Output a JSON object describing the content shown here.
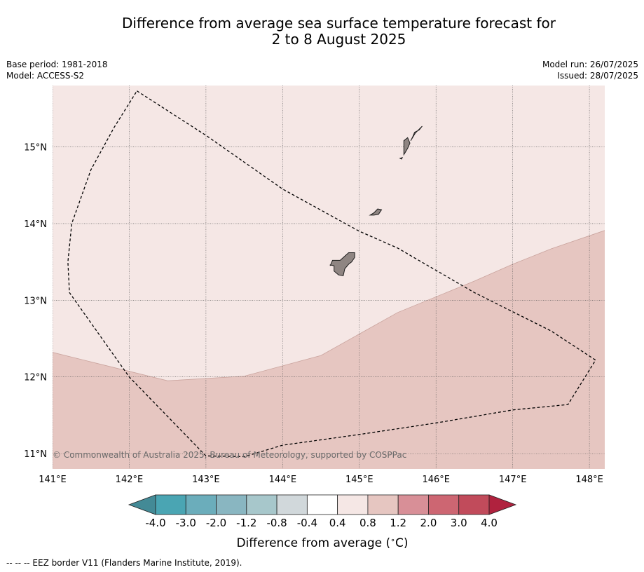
{
  "title": {
    "line1": "Difference from average sea surface temperature forecast for",
    "line2": "2 to 8 August 2025"
  },
  "meta_left": {
    "base_period": "Base period: 1981-2018",
    "model": "Model: ACCESS-S2"
  },
  "meta_right": {
    "model_run": "Model run: 26/07/2025",
    "issued": "Issued: 28/07/2025"
  },
  "map": {
    "lon_range": [
      141.0,
      148.2
    ],
    "lat_range": [
      10.8,
      15.8
    ],
    "lon_ticks": [
      141,
      142,
      143,
      144,
      145,
      146,
      147,
      148
    ],
    "lat_ticks": [
      11,
      12,
      13,
      14,
      15
    ],
    "lon_labels": [
      "141°E",
      "142°E",
      "143°E",
      "144°E",
      "145°E",
      "146°E",
      "147°E",
      "148°E"
    ],
    "lat_labels": [
      "11°N",
      "12°N",
      "13°N",
      "14°N",
      "15°N"
    ],
    "copyright": "© Commonwealth of Australia 2025, Bureau of Meteorology, supported by COSPPac",
    "background_band": {
      "range": "0.4 to 0.8",
      "color": "#f5e7e5"
    },
    "warm_band": {
      "range": "0.8 to 1.2",
      "color": "#e6c6c1",
      "boundary": [
        [
          141.0,
          12.32
        ],
        [
          142.5,
          11.95
        ],
        [
          143.5,
          12.01
        ],
        [
          144.5,
          12.28
        ],
        [
          145.5,
          12.84
        ],
        [
          146.5,
          13.25
        ],
        [
          147.0,
          13.47
        ],
        [
          147.5,
          13.67
        ],
        [
          148.2,
          13.91
        ]
      ]
    },
    "eez_border": [
      [
        142.1,
        15.73
      ],
      [
        143.0,
        15.15
      ],
      [
        144.0,
        14.45
      ],
      [
        145.0,
        13.9
      ],
      [
        145.5,
        13.68
      ],
      [
        146.5,
        13.1
      ],
      [
        147.5,
        12.6
      ],
      [
        148.08,
        12.22
      ],
      [
        147.72,
        11.64
      ],
      [
        147.0,
        11.57
      ],
      [
        146.0,
        11.4
      ],
      [
        145.0,
        11.25
      ],
      [
        144.0,
        11.11
      ],
      [
        143.5,
        10.96
      ],
      [
        143.0,
        10.97
      ],
      [
        142.0,
        12.0
      ],
      [
        141.22,
        13.1
      ],
      [
        141.2,
        13.5
      ],
      [
        141.25,
        14.0
      ],
      [
        141.5,
        14.7
      ],
      [
        141.8,
        15.25
      ],
      [
        142.1,
        15.73
      ]
    ],
    "islands": [
      {
        "name": "guam",
        "coords": [
          [
            144.73,
            13.33
          ],
          [
            144.67,
            13.38
          ],
          [
            144.67,
            13.45
          ],
          [
            144.62,
            13.46
          ],
          [
            144.62,
            13.45
          ],
          [
            144.65,
            13.52
          ],
          [
            144.75,
            13.52
          ],
          [
            144.86,
            13.62
          ],
          [
            144.94,
            13.62
          ],
          [
            144.94,
            13.56
          ],
          [
            144.9,
            13.5
          ],
          [
            144.86,
            13.47
          ],
          [
            144.81,
            13.41
          ],
          [
            144.79,
            13.32
          ],
          [
            144.73,
            13.33
          ]
        ]
      },
      {
        "name": "rota",
        "coords": [
          [
            145.14,
            14.11
          ],
          [
            145.19,
            14.14
          ],
          [
            145.24,
            14.19
          ],
          [
            145.29,
            14.18
          ],
          [
            145.25,
            14.12
          ],
          [
            145.19,
            14.11
          ],
          [
            145.14,
            14.11
          ]
        ]
      },
      {
        "name": "tinian",
        "coords": [
          [
            145.58,
            14.9
          ],
          [
            145.6,
            14.93
          ],
          [
            145.63,
            14.98
          ],
          [
            145.66,
            15.05
          ],
          [
            145.63,
            15.12
          ],
          [
            145.58,
            15.08
          ],
          [
            145.58,
            15.0
          ],
          [
            145.58,
            14.9
          ]
        ]
      },
      {
        "name": "saipan",
        "coords": [
          [
            145.67,
            15.08
          ],
          [
            145.73,
            15.18
          ],
          [
            145.82,
            15.27
          ],
          [
            145.78,
            15.22
          ],
          [
            145.72,
            15.19
          ],
          [
            145.7,
            15.14
          ],
          [
            145.67,
            15.08
          ]
        ]
      },
      {
        "name": "aguijan",
        "coords": [
          [
            145.53,
            14.85
          ],
          [
            145.56,
            14.86
          ],
          [
            145.55,
            14.84
          ],
          [
            145.53,
            14.85
          ]
        ]
      }
    ]
  },
  "colorbar": {
    "label": "Difference from average ($^\\circ$C)",
    "label_display": "Difference from average (",
    "label_unit": "C)",
    "label_degree": "∘",
    "tick_labels": [
      "-4.0",
      "-3.0",
      "-2.0",
      "-1.2",
      "-0.8",
      "-0.4",
      "0.4",
      "0.8",
      "1.2",
      "2.0",
      "3.0",
      "4.0"
    ],
    "colors": [
      "#4aa5b3",
      "#6badbb",
      "#89b6c1",
      "#a7c7cb",
      "#d1d8db",
      "#ffffff",
      "#f5e7e5",
      "#e6c6c1",
      "#d88f97",
      "#cd6672",
      "#c14b5b"
    ],
    "extend_low_color": "#438a96",
    "extend_high_color": "#b0223e"
  },
  "footer": "--  --  -- EEZ border V11 (Flanders Marine Institute, 2019)."
}
